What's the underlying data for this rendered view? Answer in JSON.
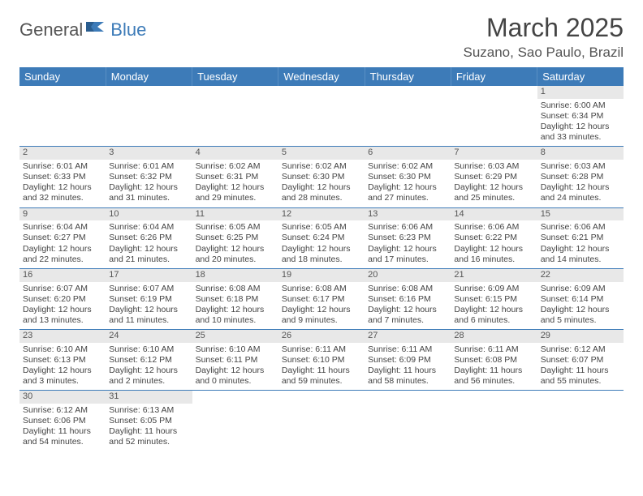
{
  "logo": {
    "part1": "General",
    "part2": "Blue"
  },
  "title": "March 2025",
  "location": "Suzano, Sao Paulo, Brazil",
  "colors": {
    "header_bg": "#3d7bb8",
    "row_border": "#3d7bb8",
    "daynum_bg": "#e8e8e8"
  },
  "weekdays": [
    "Sunday",
    "Monday",
    "Tuesday",
    "Wednesday",
    "Thursday",
    "Friday",
    "Saturday"
  ],
  "weeks": [
    [
      {
        "n": "",
        "empty": true
      },
      {
        "n": "",
        "empty": true
      },
      {
        "n": "",
        "empty": true
      },
      {
        "n": "",
        "empty": true
      },
      {
        "n": "",
        "empty": true
      },
      {
        "n": "",
        "empty": true
      },
      {
        "n": "1",
        "sr": "Sunrise: 6:00 AM",
        "ss": "Sunset: 6:34 PM",
        "dl": "Daylight: 12 hours and 33 minutes."
      }
    ],
    [
      {
        "n": "2",
        "sr": "Sunrise: 6:01 AM",
        "ss": "Sunset: 6:33 PM",
        "dl": "Daylight: 12 hours and 32 minutes."
      },
      {
        "n": "3",
        "sr": "Sunrise: 6:01 AM",
        "ss": "Sunset: 6:32 PM",
        "dl": "Daylight: 12 hours and 31 minutes."
      },
      {
        "n": "4",
        "sr": "Sunrise: 6:02 AM",
        "ss": "Sunset: 6:31 PM",
        "dl": "Daylight: 12 hours and 29 minutes."
      },
      {
        "n": "5",
        "sr": "Sunrise: 6:02 AM",
        "ss": "Sunset: 6:30 PM",
        "dl": "Daylight: 12 hours and 28 minutes."
      },
      {
        "n": "6",
        "sr": "Sunrise: 6:02 AM",
        "ss": "Sunset: 6:30 PM",
        "dl": "Daylight: 12 hours and 27 minutes."
      },
      {
        "n": "7",
        "sr": "Sunrise: 6:03 AM",
        "ss": "Sunset: 6:29 PM",
        "dl": "Daylight: 12 hours and 25 minutes."
      },
      {
        "n": "8",
        "sr": "Sunrise: 6:03 AM",
        "ss": "Sunset: 6:28 PM",
        "dl": "Daylight: 12 hours and 24 minutes."
      }
    ],
    [
      {
        "n": "9",
        "sr": "Sunrise: 6:04 AM",
        "ss": "Sunset: 6:27 PM",
        "dl": "Daylight: 12 hours and 22 minutes."
      },
      {
        "n": "10",
        "sr": "Sunrise: 6:04 AM",
        "ss": "Sunset: 6:26 PM",
        "dl": "Daylight: 12 hours and 21 minutes."
      },
      {
        "n": "11",
        "sr": "Sunrise: 6:05 AM",
        "ss": "Sunset: 6:25 PM",
        "dl": "Daylight: 12 hours and 20 minutes."
      },
      {
        "n": "12",
        "sr": "Sunrise: 6:05 AM",
        "ss": "Sunset: 6:24 PM",
        "dl": "Daylight: 12 hours and 18 minutes."
      },
      {
        "n": "13",
        "sr": "Sunrise: 6:06 AM",
        "ss": "Sunset: 6:23 PM",
        "dl": "Daylight: 12 hours and 17 minutes."
      },
      {
        "n": "14",
        "sr": "Sunrise: 6:06 AM",
        "ss": "Sunset: 6:22 PM",
        "dl": "Daylight: 12 hours and 16 minutes."
      },
      {
        "n": "15",
        "sr": "Sunrise: 6:06 AM",
        "ss": "Sunset: 6:21 PM",
        "dl": "Daylight: 12 hours and 14 minutes."
      }
    ],
    [
      {
        "n": "16",
        "sr": "Sunrise: 6:07 AM",
        "ss": "Sunset: 6:20 PM",
        "dl": "Daylight: 12 hours and 13 minutes."
      },
      {
        "n": "17",
        "sr": "Sunrise: 6:07 AM",
        "ss": "Sunset: 6:19 PM",
        "dl": "Daylight: 12 hours and 11 minutes."
      },
      {
        "n": "18",
        "sr": "Sunrise: 6:08 AM",
        "ss": "Sunset: 6:18 PM",
        "dl": "Daylight: 12 hours and 10 minutes."
      },
      {
        "n": "19",
        "sr": "Sunrise: 6:08 AM",
        "ss": "Sunset: 6:17 PM",
        "dl": "Daylight: 12 hours and 9 minutes."
      },
      {
        "n": "20",
        "sr": "Sunrise: 6:08 AM",
        "ss": "Sunset: 6:16 PM",
        "dl": "Daylight: 12 hours and 7 minutes."
      },
      {
        "n": "21",
        "sr": "Sunrise: 6:09 AM",
        "ss": "Sunset: 6:15 PM",
        "dl": "Daylight: 12 hours and 6 minutes."
      },
      {
        "n": "22",
        "sr": "Sunrise: 6:09 AM",
        "ss": "Sunset: 6:14 PM",
        "dl": "Daylight: 12 hours and 5 minutes."
      }
    ],
    [
      {
        "n": "23",
        "sr": "Sunrise: 6:10 AM",
        "ss": "Sunset: 6:13 PM",
        "dl": "Daylight: 12 hours and 3 minutes."
      },
      {
        "n": "24",
        "sr": "Sunrise: 6:10 AM",
        "ss": "Sunset: 6:12 PM",
        "dl": "Daylight: 12 hours and 2 minutes."
      },
      {
        "n": "25",
        "sr": "Sunrise: 6:10 AM",
        "ss": "Sunset: 6:11 PM",
        "dl": "Daylight: 12 hours and 0 minutes."
      },
      {
        "n": "26",
        "sr": "Sunrise: 6:11 AM",
        "ss": "Sunset: 6:10 PM",
        "dl": "Daylight: 11 hours and 59 minutes."
      },
      {
        "n": "27",
        "sr": "Sunrise: 6:11 AM",
        "ss": "Sunset: 6:09 PM",
        "dl": "Daylight: 11 hours and 58 minutes."
      },
      {
        "n": "28",
        "sr": "Sunrise: 6:11 AM",
        "ss": "Sunset: 6:08 PM",
        "dl": "Daylight: 11 hours and 56 minutes."
      },
      {
        "n": "29",
        "sr": "Sunrise: 6:12 AM",
        "ss": "Sunset: 6:07 PM",
        "dl": "Daylight: 11 hours and 55 minutes."
      }
    ],
    [
      {
        "n": "30",
        "sr": "Sunrise: 6:12 AM",
        "ss": "Sunset: 6:06 PM",
        "dl": "Daylight: 11 hours and 54 minutes."
      },
      {
        "n": "31",
        "sr": "Sunrise: 6:13 AM",
        "ss": "Sunset: 6:05 PM",
        "dl": "Daylight: 11 hours and 52 minutes."
      },
      {
        "n": "",
        "empty": true
      },
      {
        "n": "",
        "empty": true
      },
      {
        "n": "",
        "empty": true
      },
      {
        "n": "",
        "empty": true
      },
      {
        "n": "",
        "empty": true
      }
    ]
  ]
}
